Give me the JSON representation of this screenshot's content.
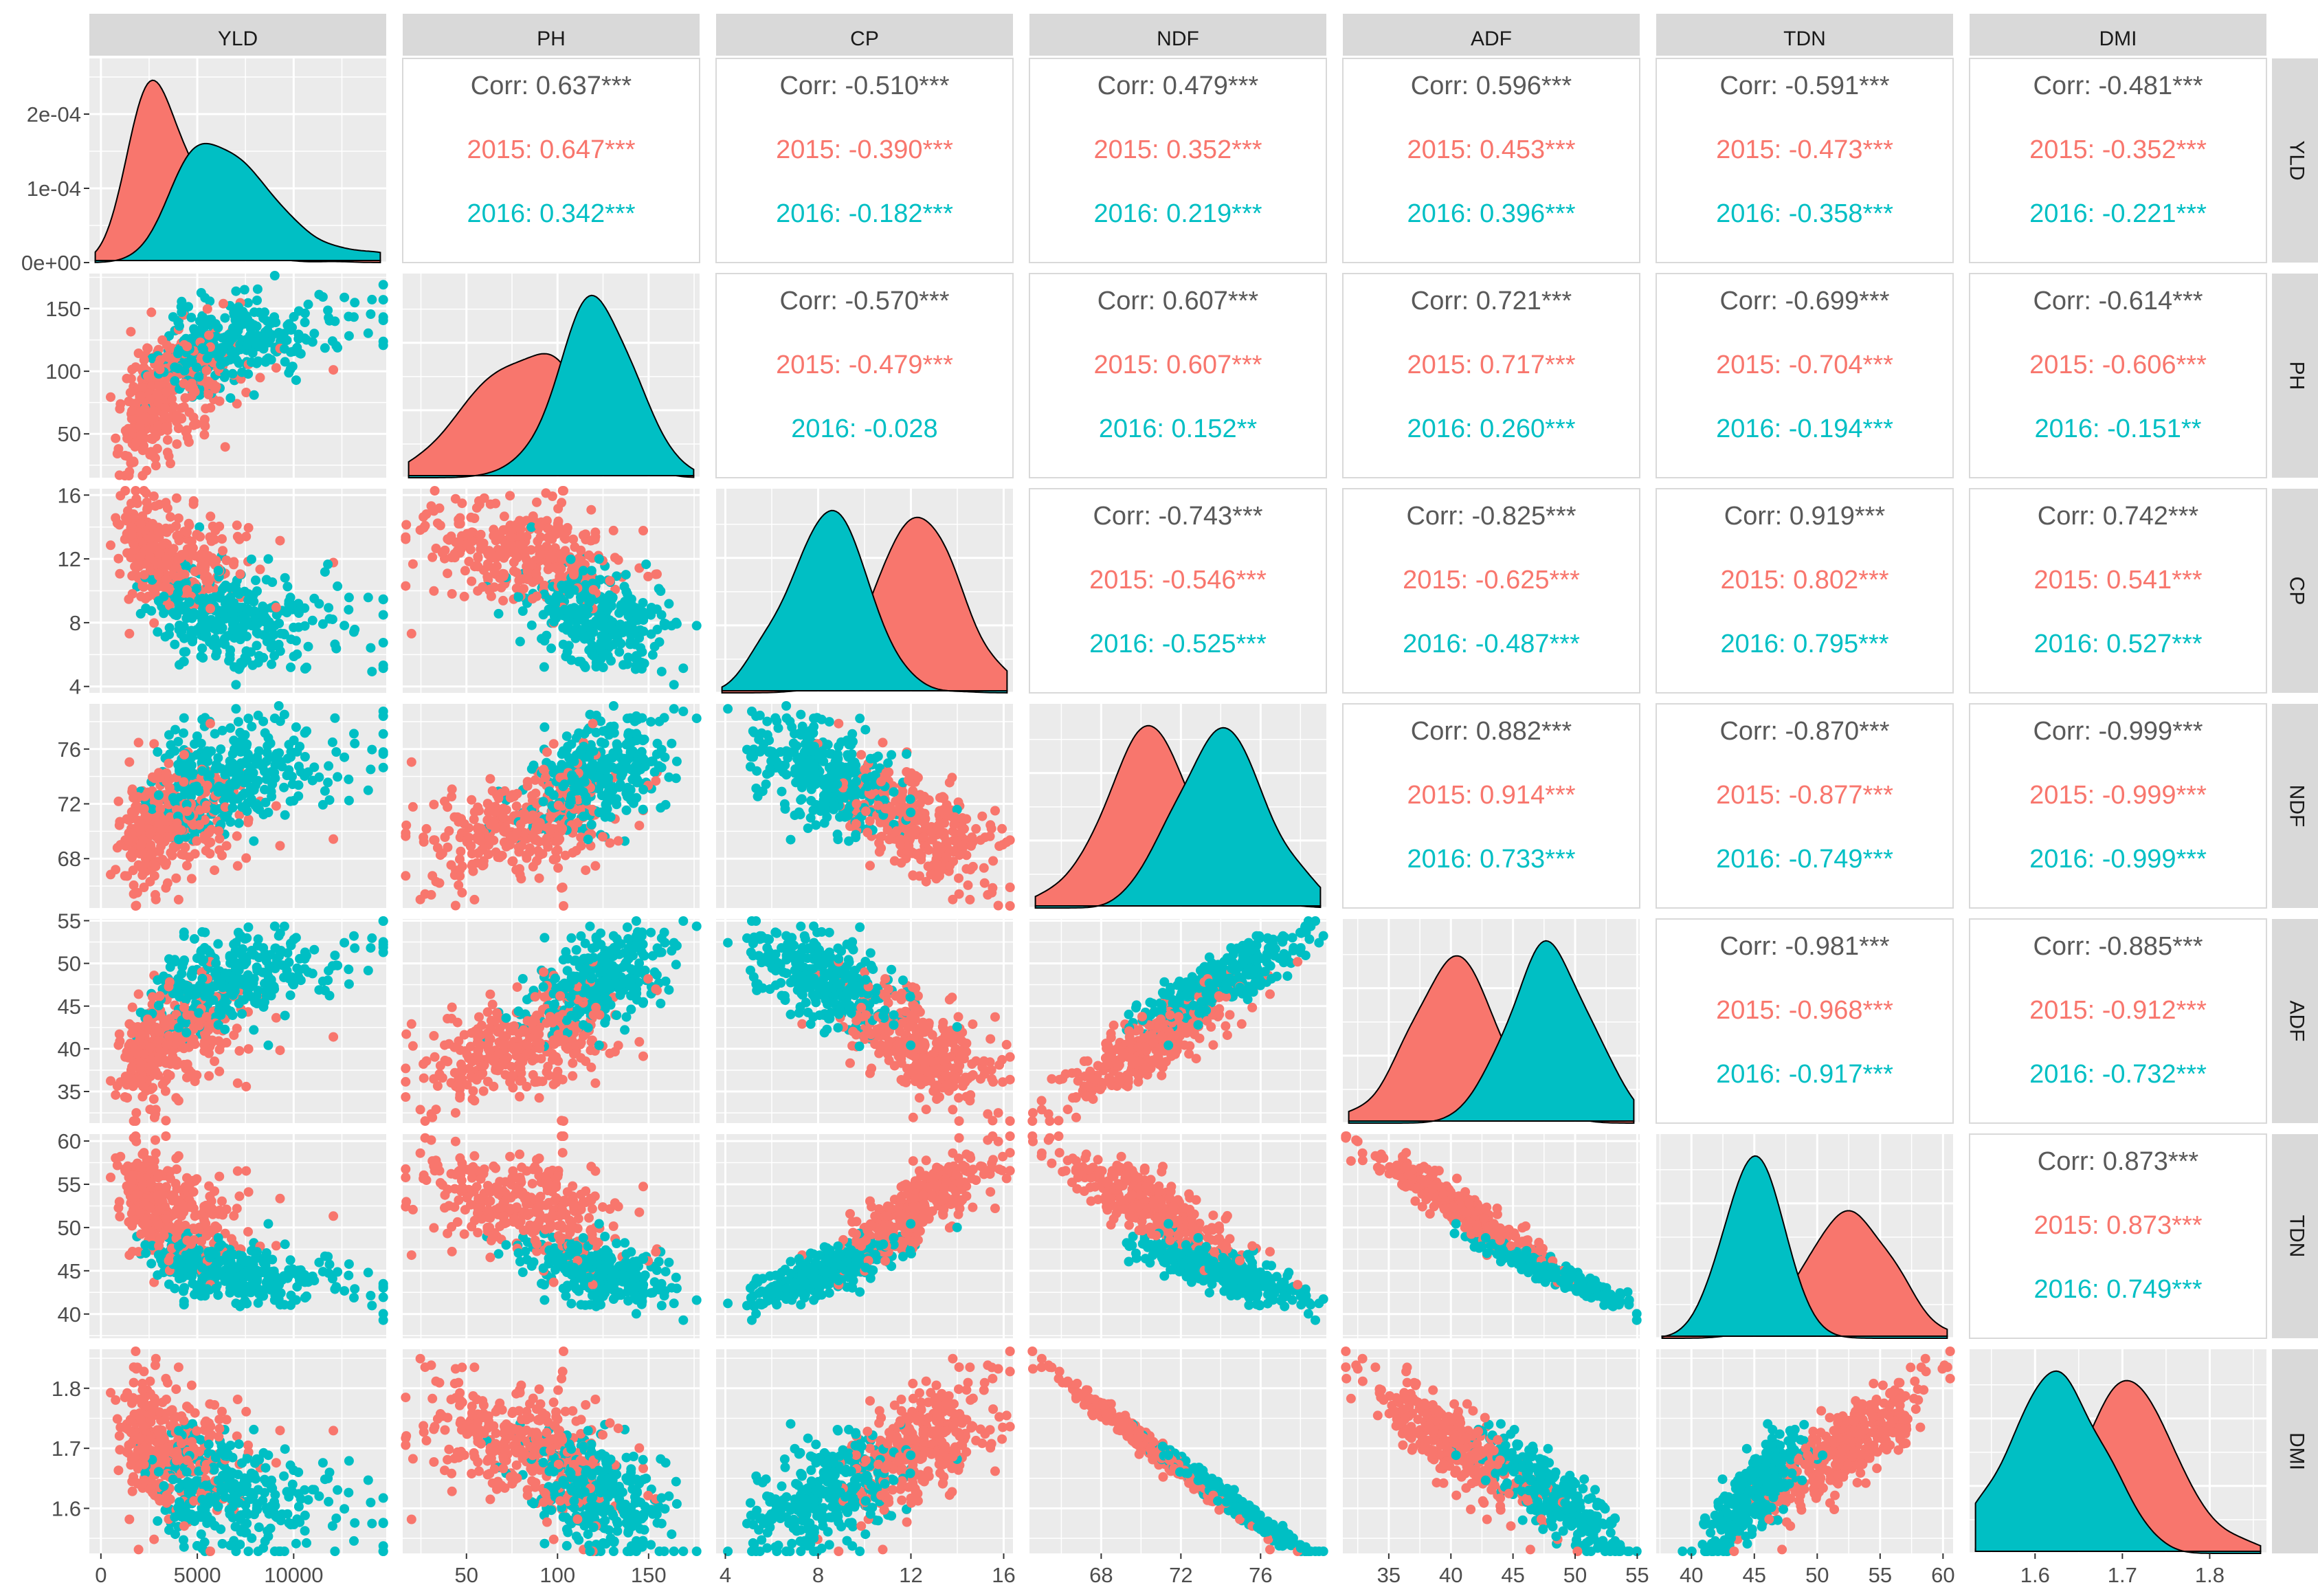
{
  "variables": [
    "YLD",
    "PH",
    "CP",
    "NDF",
    "ADF",
    "TDN",
    "DMI"
  ],
  "colors": {
    "y2015": "#F8766D",
    "y2016": "#00BFC4",
    "overall": "#595959",
    "panel": "#EBEBEB",
    "strip": "#D9D9D9",
    "grid": "#FFFFFF"
  },
  "chart_data": {
    "type": "scatter-matrix",
    "groups": [
      "2015",
      "2016"
    ],
    "axes": {
      "YLD": {
        "range": [
          -600,
          14800
        ],
        "ticks": [
          0,
          5000,
          10000
        ],
        "tick_labels": [
          "0",
          "5000",
          "10000"
        ],
        "density_ticks": [
          0,
          0.0001,
          0.0002
        ],
        "density_tick_labels": [
          "0e+00",
          "1e-04",
          "2e-04"
        ],
        "density_range": [
          0,
          0.000275
        ]
      },
      "PH": {
        "range": [
          15,
          178
        ],
        "ticks": [
          50,
          100,
          150
        ],
        "tick_labels": [
          "50",
          "100",
          "150"
        ]
      },
      "CP": {
        "range": [
          3.6,
          16.4
        ],
        "ticks": [
          4,
          8,
          12,
          16
        ],
        "tick_labels": [
          "4",
          "8",
          "12",
          "16"
        ]
      },
      "NDF": {
        "range": [
          64.4,
          79.3
        ],
        "ticks": [
          68,
          72,
          76
        ],
        "tick_labels": [
          "68",
          "72",
          "76"
        ]
      },
      "ADF": {
        "range": [
          31.3,
          55.2
        ],
        "ticks": [
          35,
          40,
          45,
          50,
          55
        ],
        "tick_labels": [
          "35",
          "40",
          "45",
          "50",
          "55"
        ]
      },
      "TDN": {
        "range": [
          37.2,
          60.8
        ],
        "ticks": [
          40,
          45,
          50,
          55,
          60
        ],
        "tick_labels": [
          "40",
          "45",
          "50",
          "55",
          "60"
        ]
      },
      "DMI": {
        "range": [
          1.525,
          1.865
        ],
        "ticks": [
          1.6,
          1.7,
          1.8
        ],
        "tick_labels": [
          "1.6",
          "1.7",
          "1.8"
        ]
      }
    },
    "group_stats": {
      "2015": {
        "YLD": [
          3200,
          1700
        ],
        "PH": [
          80,
          28
        ],
        "CP": [
          12.4,
          1.6
        ],
        "NDF": [
          70.4,
          2.3
        ],
        "ADF": [
          40.5,
          3.5
        ],
        "TDN": [
          52.5,
          3.2
        ],
        "DMI": [
          1.706,
          0.058
        ]
      },
      "2016": {
        "YLD": [
          6500,
          2800
        ],
        "PH": [
          123,
          18
        ],
        "CP": [
          8.5,
          1.7
        ],
        "NDF": [
          74.0,
          2.2
        ],
        "ADF": [
          48.0,
          3.0
        ],
        "TDN": [
          45.0,
          2.0
        ],
        "DMI": [
          1.625,
          0.052
        ]
      }
    },
    "correlations": {
      "YLD-PH": {
        "overall": "Corr: 0.637***",
        "y2015": "2015: 0.647***",
        "y2016": "2016: 0.342***"
      },
      "YLD-CP": {
        "overall": "Corr: -0.510***",
        "y2015": "2015: -0.390***",
        "y2016": "2016: -0.182***"
      },
      "YLD-NDF": {
        "overall": "Corr: 0.479***",
        "y2015": "2015: 0.352***",
        "y2016": "2016: 0.219***"
      },
      "YLD-ADF": {
        "overall": "Corr: 0.596***",
        "y2015": "2015: 0.453***",
        "y2016": "2016: 0.396***"
      },
      "YLD-TDN": {
        "overall": "Corr: -0.591***",
        "y2015": "2015: -0.473***",
        "y2016": "2016: -0.358***"
      },
      "YLD-DMI": {
        "overall": "Corr: -0.481***",
        "y2015": "2015: -0.352***",
        "y2016": "2016: -0.221***"
      },
      "PH-CP": {
        "overall": "Corr: -0.570***",
        "y2015": "2015: -0.479***",
        "y2016": "2016: -0.028"
      },
      "PH-NDF": {
        "overall": "Corr: 0.607***",
        "y2015": "2015: 0.607***",
        "y2016": "2016: 0.152**"
      },
      "PH-ADF": {
        "overall": "Corr: 0.721***",
        "y2015": "2015: 0.717***",
        "y2016": "2016: 0.260***"
      },
      "PH-TDN": {
        "overall": "Corr: -0.699***",
        "y2015": "2015: -0.704***",
        "y2016": "2016: -0.194***"
      },
      "PH-DMI": {
        "overall": "Corr: -0.614***",
        "y2015": "2015: -0.606***",
        "y2016": "2016: -0.151**"
      },
      "CP-NDF": {
        "overall": "Corr: -0.743***",
        "y2015": "2015: -0.546***",
        "y2016": "2016: -0.525***"
      },
      "CP-ADF": {
        "overall": "Corr: -0.825***",
        "y2015": "2015: -0.625***",
        "y2016": "2016: -0.487***"
      },
      "CP-TDN": {
        "overall": "Corr: 0.919***",
        "y2015": "2015: 0.802***",
        "y2016": "2016: 0.795***"
      },
      "CP-DMI": {
        "overall": "Corr: 0.742***",
        "y2015": "2015: 0.541***",
        "y2016": "2016: 0.527***"
      },
      "NDF-ADF": {
        "overall": "Corr: 0.882***",
        "y2015": "2015: 0.914***",
        "y2016": "2016: 0.733***"
      },
      "NDF-TDN": {
        "overall": "Corr: -0.870***",
        "y2015": "2015: -0.877***",
        "y2016": "2016: -0.749***"
      },
      "NDF-DMI": {
        "overall": "Corr: -0.999***",
        "y2015": "2015: -0.999***",
        "y2016": "2016: -0.999***"
      },
      "ADF-TDN": {
        "overall": "Corr: -0.981***",
        "y2015": "2015: -0.968***",
        "y2016": "2016: -0.917***"
      },
      "ADF-DMI": {
        "overall": "Corr: -0.885***",
        "y2015": "2015: -0.912***",
        "y2016": "2016: -0.732***"
      },
      "TDN-DMI": {
        "overall": "Corr: 0.873***",
        "y2015": "2015: 0.873***",
        "y2016": "2016: 0.749***"
      }
    }
  }
}
